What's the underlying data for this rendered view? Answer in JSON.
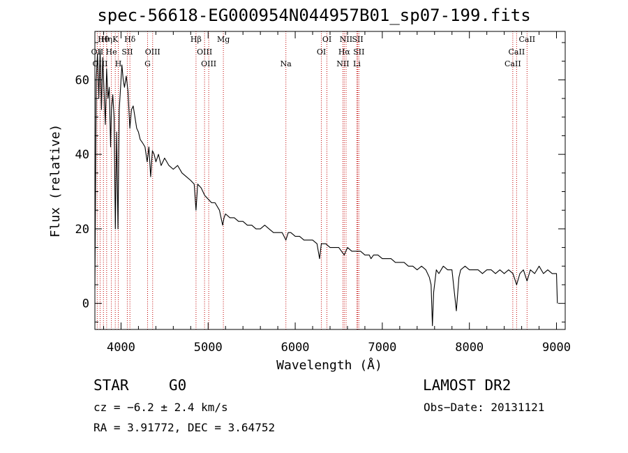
{
  "chart_data": {
    "type": "line",
    "title": "spec-56618-EG000954N044957B01_sp07-199.fits",
    "xlabel": "Wavelength (Å)",
    "ylabel": "Flux (relative)",
    "xlim": [
      3700,
      9100
    ],
    "ylim": [
      -7,
      73
    ],
    "x_ticks": [
      4000,
      5000,
      6000,
      7000,
      8000,
      9000
    ],
    "y_ticks": [
      0,
      20,
      40,
      60
    ],
    "grid": false,
    "series": [
      {
        "color": "#000000",
        "points": [
          [
            3700,
            4
          ],
          [
            3715,
            60
          ],
          [
            3730,
            67
          ],
          [
            3745,
            55
          ],
          [
            3760,
            68
          ],
          [
            3775,
            52
          ],
          [
            3790,
            66
          ],
          [
            3805,
            57
          ],
          [
            3820,
            48
          ],
          [
            3835,
            63
          ],
          [
            3850,
            55
          ],
          [
            3865,
            58
          ],
          [
            3880,
            42
          ],
          [
            3890,
            52
          ],
          [
            3905,
            56
          ],
          [
            3920,
            50
          ],
          [
            3935,
            20
          ],
          [
            3950,
            46
          ],
          [
            3965,
            20
          ],
          [
            3980,
            52
          ],
          [
            3995,
            58
          ],
          [
            4010,
            64
          ],
          [
            4025,
            60
          ],
          [
            4040,
            58
          ],
          [
            4060,
            61
          ],
          [
            4080,
            57
          ],
          [
            4101,
            47
          ],
          [
            4120,
            52
          ],
          [
            4140,
            53
          ],
          [
            4160,
            50
          ],
          [
            4180,
            47
          ],
          [
            4200,
            46
          ],
          [
            4220,
            44
          ],
          [
            4250,
            43
          ],
          [
            4275,
            42
          ],
          [
            4300,
            38
          ],
          [
            4320,
            42
          ],
          [
            4340,
            34
          ],
          [
            4360,
            41
          ],
          [
            4380,
            40
          ],
          [
            4400,
            38
          ],
          [
            4430,
            40
          ],
          [
            4460,
            37
          ],
          [
            4500,
            39
          ],
          [
            4550,
            37
          ],
          [
            4600,
            36
          ],
          [
            4650,
            37
          ],
          [
            4700,
            35
          ],
          [
            4750,
            34
          ],
          [
            4800,
            33
          ],
          [
            4840,
            32
          ],
          [
            4861,
            25
          ],
          [
            4880,
            32
          ],
          [
            4920,
            31
          ],
          [
            4960,
            29
          ],
          [
            5000,
            28
          ],
          [
            5040,
            27
          ],
          [
            5080,
            27
          ],
          [
            5130,
            25
          ],
          [
            5167,
            21
          ],
          [
            5183,
            23
          ],
          [
            5200,
            24
          ],
          [
            5250,
            23
          ],
          [
            5300,
            23
          ],
          [
            5350,
            22
          ],
          [
            5400,
            22
          ],
          [
            5450,
            21
          ],
          [
            5500,
            21
          ],
          [
            5550,
            20
          ],
          [
            5600,
            20
          ],
          [
            5650,
            21
          ],
          [
            5700,
            20
          ],
          [
            5750,
            19
          ],
          [
            5800,
            19
          ],
          [
            5850,
            19
          ],
          [
            5893,
            17
          ],
          [
            5920,
            19
          ],
          [
            5950,
            19
          ],
          [
            6000,
            18
          ],
          [
            6050,
            18
          ],
          [
            6100,
            17
          ],
          [
            6150,
            17
          ],
          [
            6200,
            17
          ],
          [
            6250,
            16
          ],
          [
            6280,
            12
          ],
          [
            6300,
            16
          ],
          [
            6350,
            16
          ],
          [
            6400,
            15
          ],
          [
            6450,
            15
          ],
          [
            6500,
            15
          ],
          [
            6563,
            13
          ],
          [
            6600,
            15
          ],
          [
            6650,
            14
          ],
          [
            6700,
            14
          ],
          [
            6750,
            14
          ],
          [
            6800,
            13
          ],
          [
            6850,
            13
          ],
          [
            6870,
            12
          ],
          [
            6900,
            13
          ],
          [
            6950,
            13
          ],
          [
            7000,
            12
          ],
          [
            7050,
            12
          ],
          [
            7100,
            12
          ],
          [
            7150,
            11
          ],
          [
            7200,
            11
          ],
          [
            7250,
            11
          ],
          [
            7300,
            10
          ],
          [
            7350,
            10
          ],
          [
            7400,
            9
          ],
          [
            7450,
            10
          ],
          [
            7500,
            9
          ],
          [
            7540,
            7
          ],
          [
            7560,
            5
          ],
          [
            7575,
            -6
          ],
          [
            7590,
            3
          ],
          [
            7620,
            9
          ],
          [
            7650,
            8
          ],
          [
            7700,
            10
          ],
          [
            7750,
            9
          ],
          [
            7800,
            9
          ],
          [
            7850,
            -2
          ],
          [
            7880,
            7
          ],
          [
            7900,
            9
          ],
          [
            7950,
            10
          ],
          [
            8000,
            9
          ],
          [
            8050,
            9
          ],
          [
            8100,
            9
          ],
          [
            8150,
            8
          ],
          [
            8200,
            9
          ],
          [
            8250,
            9
          ],
          [
            8300,
            8
          ],
          [
            8350,
            9
          ],
          [
            8400,
            8
          ],
          [
            8450,
            9
          ],
          [
            8500,
            8
          ],
          [
            8542,
            5
          ],
          [
            8580,
            8
          ],
          [
            8620,
            9
          ],
          [
            8662,
            6
          ],
          [
            8700,
            9
          ],
          [
            8750,
            8
          ],
          [
            8800,
            10
          ],
          [
            8850,
            8
          ],
          [
            8900,
            9
          ],
          [
            8950,
            8
          ],
          [
            9000,
            8
          ],
          [
            9010,
            0
          ]
        ]
      }
    ],
    "lines": [
      {
        "label": "Hθ",
        "wl": 3798,
        "row": 0
      },
      {
        "label": "Hη",
        "wl": 3835,
        "row": 0
      },
      {
        "label": "K",
        "wl": 3934,
        "row": 0
      },
      {
        "label": "Hδ",
        "wl": 4102,
        "row": 0
      },
      {
        "label": "Hβ",
        "wl": 4861,
        "row": 0
      },
      {
        "label": "Mg",
        "wl": 5175,
        "row": 0
      },
      {
        "label": "OI",
        "wl": 6300,
        "row": 1
      },
      {
        "label": "NII",
        "wl": 6584,
        "row": 0
      },
      {
        "label": "SII",
        "wl": 6717,
        "row": 0
      },
      {
        "label": "CaII",
        "wl": 8662,
        "row": 0
      },
      {
        "label": "OII",
        "wl": 3727,
        "row": 1
      },
      {
        "label": "He",
        "wl": 3889,
        "row": 1
      },
      {
        "label": "SII",
        "wl": 4072,
        "row": 1
      },
      {
        "label": "OIII",
        "wl": 4363,
        "row": 1
      },
      {
        "label": "OIII",
        "wl": 4959,
        "row": 1
      },
      {
        "label": "OI",
        "wl": 6364,
        "row": 0
      },
      {
        "label": "Hα",
        "wl": 6563,
        "row": 1
      },
      {
        "label": "SII",
        "wl": 6731,
        "row": 1
      },
      {
        "label": "CaII",
        "wl": 8542,
        "row": 1
      },
      {
        "label": "OIII",
        "wl": 3760,
        "row": 2
      },
      {
        "label": "H",
        "wl": 3969,
        "row": 2
      },
      {
        "label": "G",
        "wl": 4305,
        "row": 2
      },
      {
        "label": "OIII",
        "wl": 5007,
        "row": 2
      },
      {
        "label": "Na",
        "wl": 5893,
        "row": 2
      },
      {
        "label": "NII",
        "wl": 6548,
        "row": 2
      },
      {
        "label": "Li",
        "wl": 6708,
        "row": 2
      },
      {
        "label": "CaII",
        "wl": 8498,
        "row": 2
      }
    ]
  },
  "info": {
    "class_label": "STAR",
    "subclass": "G0",
    "survey": "LAMOST DR2",
    "cz": "cz = −6.2 ± 2.4 km/s",
    "obs_date": "Obs−Date: 20131121",
    "coords": "RA =   3.91772, DEC =   3.64752"
  }
}
